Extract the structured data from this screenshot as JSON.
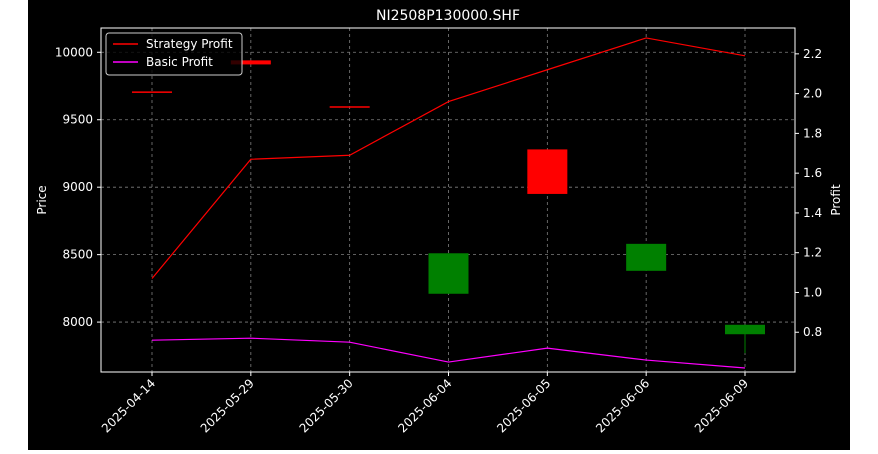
{
  "chart_data": {
    "type": "candlestick_with_lines",
    "title": "NI2508P130000.SHF",
    "xlabel": "",
    "ylabel_left": "Price",
    "ylabel_right": "Profit",
    "categories": [
      "2025-04-14",
      "2025-05-29",
      "2025-05-30",
      "2025-06-04",
      "2025-06-05",
      "2025-06-06",
      "2025-06-09"
    ],
    "ylim_left": [
      7630,
      10180
    ],
    "ylim_right": [
      0.6,
      2.33
    ],
    "yticks_left": [
      8000,
      8500,
      9000,
      9500,
      10000
    ],
    "yticks_right": [
      0.8,
      1.0,
      1.2,
      1.4,
      1.6,
      1.8,
      2.0,
      2.2
    ],
    "grid": true,
    "legend": {
      "placement": "top-left"
    },
    "candles": [
      {
        "date": "2025-04-14",
        "open": 9710,
        "close": 9710,
        "high": 9710,
        "low": 9710,
        "color": "#ff0000"
      },
      {
        "date": "2025-05-29",
        "open": 9910,
        "close": 9940,
        "high": 9940,
        "low": 9910,
        "color": "#ff0000"
      },
      {
        "date": "2025-05-30",
        "open": 9600,
        "close": 9600,
        "high": 9600,
        "low": 9600,
        "color": "#ff0000"
      },
      {
        "date": "2025-06-04",
        "open": 8510,
        "close": 8210,
        "high": 8510,
        "low": 8210,
        "color": "#008000"
      },
      {
        "date": "2025-06-05",
        "open": 8950,
        "close": 9280,
        "high": 9280,
        "low": 8950,
        "color": "#ff0000"
      },
      {
        "date": "2025-06-06",
        "open": 8580,
        "close": 8380,
        "high": 8580,
        "low": 8380,
        "color": "#008000"
      },
      {
        "date": "2025-06-09",
        "open": 7980,
        "close": 7910,
        "high": 7980,
        "low": 7770,
        "color": "#008000"
      }
    ],
    "series": [
      {
        "name": "Strategy Profit",
        "color": "#ff0000",
        "axis": "right",
        "values": [
          1.07,
          1.67,
          1.69,
          1.96,
          2.12,
          2.28,
          2.19
        ]
      },
      {
        "name": "Basic Profit",
        "color": "#ff00ff",
        "axis": "right",
        "values": [
          0.76,
          0.77,
          0.75,
          0.65,
          0.72,
          0.66,
          0.62
        ]
      }
    ]
  },
  "colors": {
    "figure_bg": "#ffffff",
    "axes_bg": "#000000",
    "text": "#ffffff",
    "grid": "#7f7f7f"
  }
}
